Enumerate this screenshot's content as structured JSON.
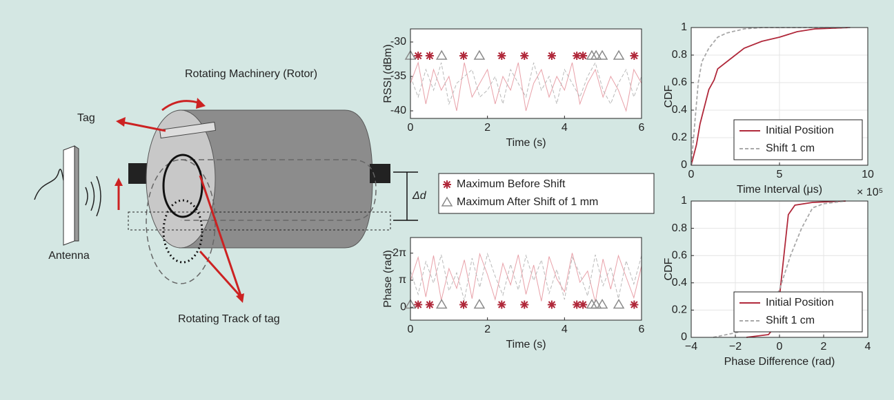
{
  "diagram": {
    "rotor_label": "Rotating Machinery (Rotor)",
    "tag_label": "Tag",
    "antenna_label": "Antenna",
    "track_label": "Rotating Track of tag",
    "shift_label": "Δd"
  },
  "chart_data": [
    {
      "type": "line",
      "xlabel": "Time (s)",
      "ylabel": "RSSI (dBm)",
      "xlim": [
        0,
        6
      ],
      "ylim": [
        -41.1,
        -28.1
      ],
      "xticks": [
        0,
        2,
        4,
        6
      ],
      "yticks": [
        -30,
        -35,
        -40
      ],
      "grid": false,
      "legend": "outside",
      "x": [
        0,
        0.2,
        0.4,
        0.6,
        0.8,
        1,
        1.2,
        1.4,
        1.6,
        1.8,
        2,
        2.2,
        2.4,
        2.6,
        2.8,
        3,
        3.2,
        3.4,
        3.6,
        3.8,
        4,
        4.2,
        4.4,
        4.6,
        4.8,
        5,
        5.2,
        5.4,
        5.6,
        5.8,
        6
      ],
      "series": [
        {
          "color": "#e8a0a8",
          "style": "solid",
          "values": [
            -36,
            -33,
            -39,
            -34,
            -37,
            -35,
            -40,
            -33,
            -38,
            -36,
            -34,
            -39,
            -35,
            -37,
            -33,
            -40,
            -36,
            -34,
            -38,
            -35,
            -37,
            -33,
            -39,
            -36,
            -34,
            -38,
            -35,
            -37,
            -40,
            -34,
            -36
          ]
        },
        {
          "color": "#b8b8b8",
          "style": "dash",
          "values": [
            -35,
            -38,
            -34,
            -37,
            -33,
            -39,
            -36,
            -35,
            -34,
            -38,
            -37,
            -35,
            -39,
            -34,
            -36,
            -38,
            -33,
            -37,
            -35,
            -39,
            -34,
            -36,
            -38,
            -35,
            -33,
            -37,
            -39,
            -36,
            -34,
            -38,
            -35
          ]
        },
        {
          "name": "Maximum Before Shift",
          "color": "#b0283a",
          "marker": "star",
          "x": [
            0.2,
            0.5,
            1.38,
            2.37,
            2.96,
            3.67,
            4.32,
            4.48,
            5.81
          ],
          "values": [
            -32,
            -32,
            -32,
            -32,
            -32,
            -32,
            -32,
            -32,
            -32
          ]
        },
        {
          "name": "Maximum After Shift of 1 mm",
          "color": "#8a8a8a",
          "marker": "triangle",
          "x": [
            0,
            0.81,
            1.79,
            4.71,
            4.82,
            4.98,
            5.41
          ],
          "values": [
            -32,
            -32,
            -32,
            -32,
            -32,
            -32,
            -32
          ]
        }
      ]
    },
    {
      "type": "line",
      "xlabel": "Time (s)",
      "ylabel": "Phase (rad)",
      "xlim": [
        0,
        6
      ],
      "ylim": [
        -1.5,
        8.1
      ],
      "xticks": [
        0,
        2,
        4,
        6
      ],
      "yticks": [
        0,
        {
          "value": 3.1416,
          "label": "π"
        },
        {
          "value": 6.2832,
          "label": "2π"
        }
      ],
      "grid": false,
      "x": [
        0,
        0.2,
        0.4,
        0.6,
        0.8,
        1,
        1.2,
        1.4,
        1.6,
        1.8,
        2,
        2.2,
        2.4,
        2.6,
        2.8,
        3,
        3.2,
        3.4,
        3.6,
        3.8,
        4,
        4.2,
        4.4,
        4.6,
        4.8,
        5,
        5.2,
        5.4,
        5.6,
        5.8,
        6
      ],
      "series": [
        {
          "color": "#e8a0a8",
          "style": "solid",
          "values": [
            3.1,
            5.8,
            1.2,
            6.0,
            0.8,
            4.5,
            2.2,
            5.5,
            1.0,
            6.2,
            3.8,
            0.9,
            5.1,
            2.6,
            6.1,
            1.5,
            4.9,
            0.7,
            5.9,
            3.3,
            1.8,
            6.3,
            2.9,
            4.2,
            0.6,
            5.6,
            2.1,
            6.0,
            3.5,
            1.1,
            4.8
          ]
        },
        {
          "color": "#b8b8b8",
          "style": "dash",
          "values": [
            4.2,
            1.5,
            5.3,
            2.8,
            6.1,
            1.9,
            4.0,
            0.8,
            5.7,
            2.3,
            6.2,
            3.6,
            1.4,
            5.0,
            2.0,
            6.0,
            3.1,
            5.5,
            1.6,
            4.4,
            0.9,
            5.8,
            3.9,
            1.3,
            6.1,
            2.5,
            4.7,
            1.0,
            5.4,
            2.7,
            6.0
          ]
        },
        {
          "color": "#b0283a",
          "marker": "star",
          "x": [
            0.2,
            0.5,
            1.38,
            2.37,
            2.96,
            3.67,
            4.32,
            4.48,
            5.81
          ],
          "values": [
            0.3,
            0.3,
            0.3,
            0.3,
            0.3,
            0.3,
            0.3,
            0.3,
            0.3
          ]
        },
        {
          "color": "#8a8a8a",
          "marker": "triangle",
          "x": [
            0,
            0.81,
            1.79,
            4.71,
            4.82,
            4.98,
            5.41
          ],
          "values": [
            0.3,
            0.3,
            0.3,
            0.3,
            0.3,
            0.3,
            0.3
          ]
        }
      ]
    },
    {
      "type": "line",
      "xlabel": "Time Interval (μs)",
      "x_multiplier": "× 10⁵",
      "ylabel": "CDF",
      "xlim": [
        0,
        10
      ],
      "ylim": [
        0,
        1
      ],
      "xticks": [
        0,
        5,
        10
      ],
      "yticks": [
        0,
        0.2,
        0.4,
        0.6,
        0.8,
        1
      ],
      "grid": true,
      "legend": "lower right",
      "series": [
        {
          "name": "Initial Position",
          "color": "#b0283a",
          "style": "solid",
          "x": [
            0,
            0.1,
            0.3,
            0.5,
            0.8,
            1,
            1.3,
            1.5,
            2,
            2.5,
            3,
            4,
            5,
            6,
            7,
            8,
            9
          ],
          "values": [
            0,
            0.05,
            0.15,
            0.3,
            0.45,
            0.55,
            0.62,
            0.7,
            0.75,
            0.8,
            0.85,
            0.9,
            0.93,
            0.97,
            0.99,
            0.995,
            1
          ]
        },
        {
          "name": "Shift 1 cm",
          "color": "#a8a8a8",
          "style": "dash",
          "x": [
            0,
            0.2,
            0.4,
            0.6,
            1,
            1.5,
            2,
            3,
            4,
            9
          ],
          "values": [
            0,
            0.3,
            0.6,
            0.75,
            0.85,
            0.93,
            0.96,
            0.99,
            1,
            1
          ]
        }
      ]
    },
    {
      "type": "line",
      "xlabel": "Phase Difference (rad)",
      "ylabel": "CDF",
      "xlim": [
        -4,
        4
      ],
      "ylim": [
        0,
        1
      ],
      "xticks": [
        {
          "value": -4,
          "label": "−4"
        },
        {
          "value": -2,
          "label": "−2"
        },
        0,
        2,
        4
      ],
      "yticks": [
        0,
        0.2,
        0.4,
        0.6,
        0.8,
        1
      ],
      "grid": true,
      "legend": "lower right",
      "series": [
        {
          "name": "Initial Position",
          "color": "#b0283a",
          "style": "solid",
          "x": [
            -1.5,
            -0.5,
            -0.1,
            0,
            0.2,
            0.4,
            0.7,
            1.5,
            3
          ],
          "values": [
            0,
            0.02,
            0.1,
            0.3,
            0.6,
            0.9,
            0.97,
            0.99,
            1
          ]
        },
        {
          "name": "Shift 1 cm",
          "color": "#a8a8a8",
          "style": "dash",
          "x": [
            -3,
            -1.5,
            -0.5,
            0,
            0.5,
            1,
            1.5,
            2,
            3
          ],
          "values": [
            0,
            0.05,
            0.2,
            0.35,
            0.6,
            0.8,
            0.95,
            0.98,
            1
          ]
        }
      ]
    }
  ]
}
